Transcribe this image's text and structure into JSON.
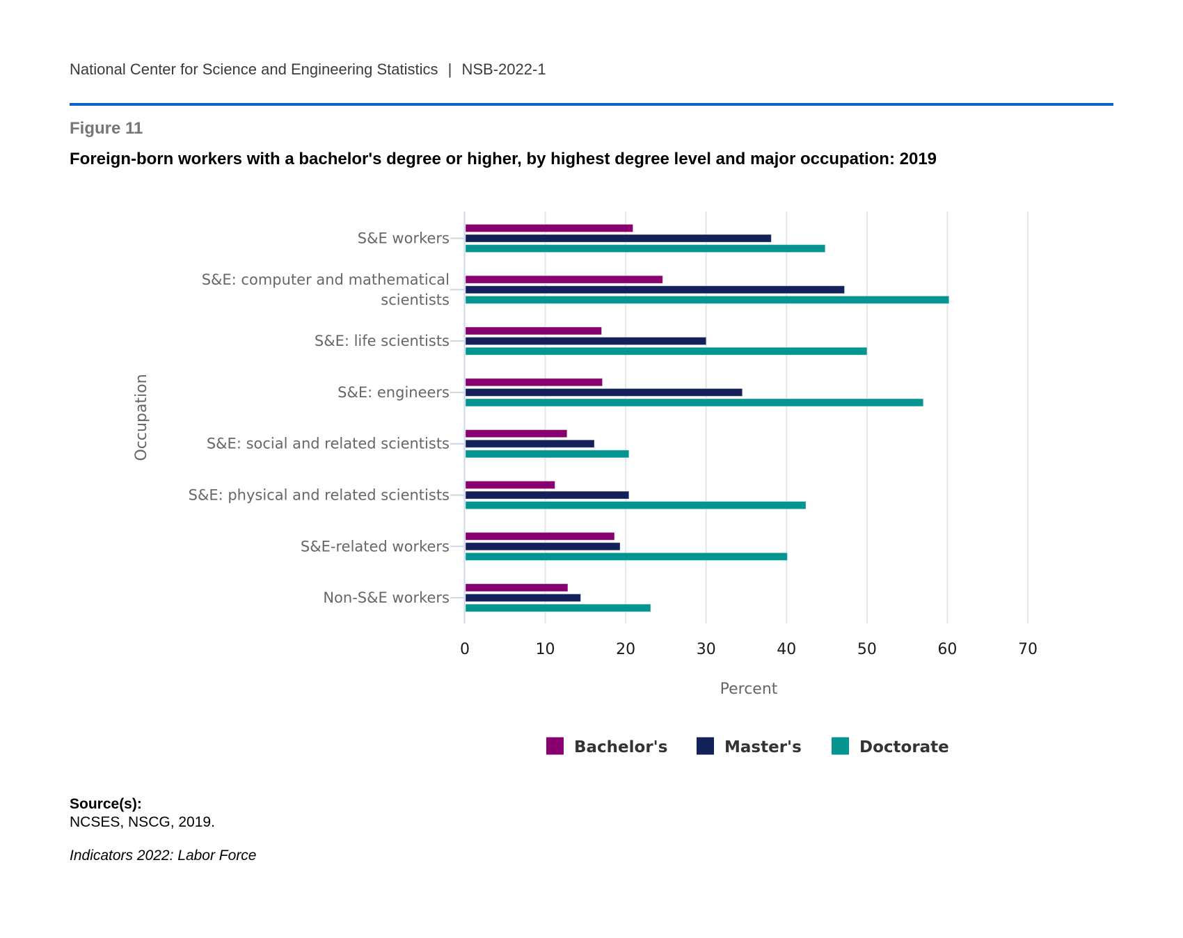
{
  "header": {
    "org": "National Center for Science and Engineering Statistics",
    "separator": "|",
    "report_id": "NSB-2022-1",
    "rule_color": "#0a63c9"
  },
  "figure": {
    "number": "Figure 11",
    "title": "Foreign-born workers with a bachelor's degree or higher, by highest degree level and major occupation: 2019"
  },
  "footer": {
    "source_label": "Source(s):",
    "source_text": "NCSES, NSCG, 2019.",
    "report_name": "Indicators 2022: Labor Force"
  },
  "chart_data": {
    "type": "bar",
    "orientation": "horizontal",
    "title": "Foreign-born workers with a bachelor's degree or higher, by highest degree level and major occupation: 2019",
    "xlabel": "Percent",
    "ylabel": "Occupation",
    "xlim": [
      0,
      70
    ],
    "xticks": [
      0,
      10,
      20,
      30,
      40,
      50,
      60,
      70
    ],
    "grid": true,
    "legend_position": "bottom-center",
    "categories": [
      [
        "S&E workers"
      ],
      [
        "S&E: computer and mathematical",
        "scientists"
      ],
      [
        "S&E: life scientists"
      ],
      [
        "S&E: engineers"
      ],
      [
        "S&E: social and related scientists"
      ],
      [
        "S&E: physical and related scientists"
      ],
      [
        "S&E-related workers"
      ],
      [
        "Non-S&E workers"
      ]
    ],
    "series": [
      {
        "name": "Bachelor's",
        "color": "#880070",
        "values": [
          20.9,
          24.6,
          17.0,
          17.1,
          12.7,
          11.2,
          18.6,
          12.8
        ]
      },
      {
        "name": "Master's",
        "color": "#13205a",
        "values": [
          38.1,
          47.2,
          30.0,
          34.5,
          16.1,
          20.4,
          19.3,
          14.4
        ]
      },
      {
        "name": "Doctorate",
        "color": "#049590",
        "values": [
          44.8,
          60.2,
          50.0,
          57.0,
          20.4,
          42.4,
          40.1,
          23.1
        ]
      }
    ]
  }
}
